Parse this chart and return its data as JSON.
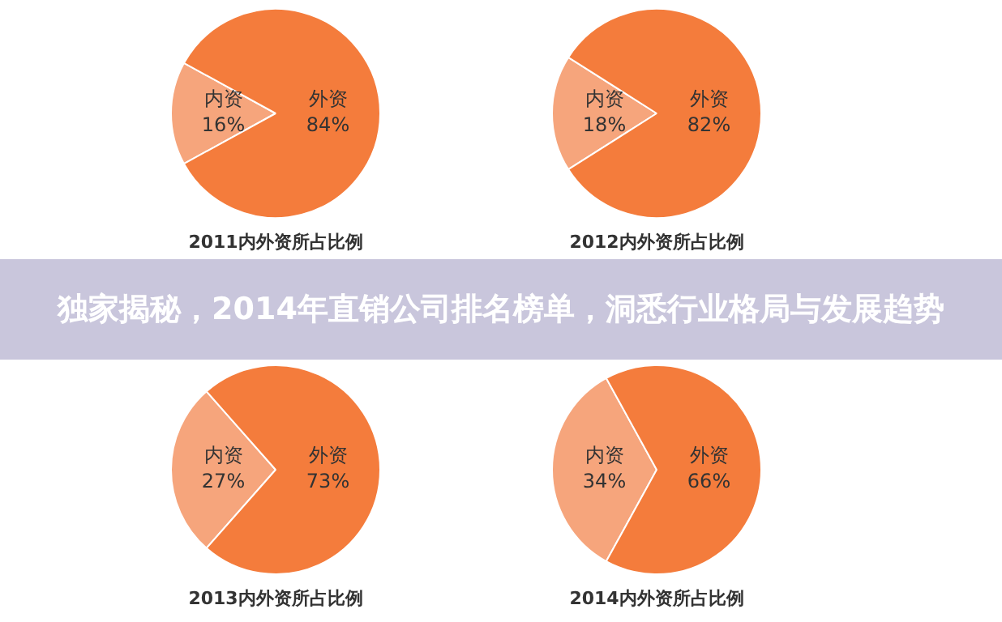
{
  "chart_data": [
    {
      "type": "pie",
      "title": "2011内外资所占比例",
      "categories": [
        "内资",
        "外资"
      ],
      "values": [
        16,
        84
      ],
      "value_labels": [
        "16%",
        "84%"
      ],
      "colors": [
        "#f6a57c",
        "#f47c3c"
      ],
      "legend": false
    },
    {
      "type": "pie",
      "title": "2012内外资所占比例",
      "categories": [
        "内资",
        "外资"
      ],
      "values": [
        18,
        82
      ],
      "value_labels": [
        "18%",
        "82%"
      ],
      "colors": [
        "#f6a57c",
        "#f47c3c"
      ],
      "legend": false
    },
    {
      "type": "other",
      "title": "独家揭秘，2014年直销公司排名榜单，洞悉行业格局与发展趋势"
    },
    {
      "type": "pie",
      "title": "2013内外资所占比例",
      "categories": [
        "内资",
        "外资"
      ],
      "values": [
        27,
        73
      ],
      "value_labels": [
        "27%",
        "73%"
      ],
      "colors": [
        "#f6a57c",
        "#f47c3c"
      ],
      "legend": false
    },
    {
      "type": "pie",
      "title": "2014内外资所占比例",
      "categories": [
        "内资",
        "外资"
      ],
      "values": [
        34,
        66
      ],
      "value_labels": [
        "34%",
        "66%"
      ],
      "colors": [
        "#f6a57c",
        "#f47c3c"
      ],
      "legend": false
    }
  ]
}
